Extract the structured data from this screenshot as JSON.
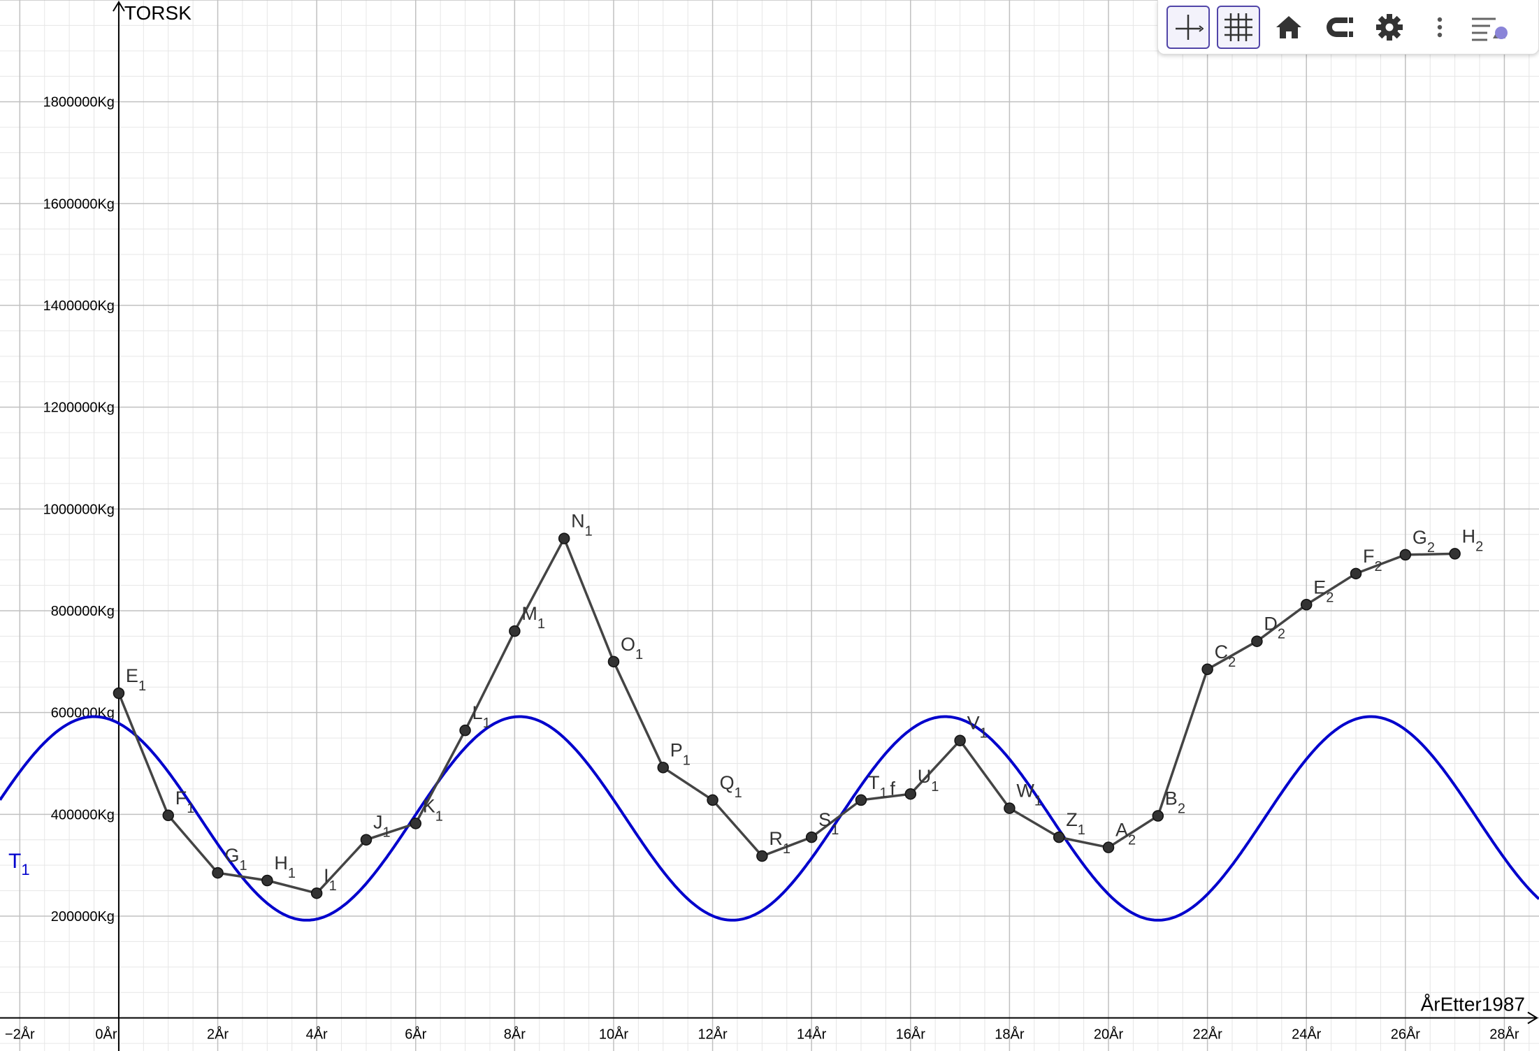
{
  "toolbar": {
    "buttons": [
      {
        "name": "axes-toggle-button",
        "icon": "axes-icon",
        "active": true
      },
      {
        "name": "grid-toggle-button",
        "icon": "grid-icon",
        "active": true
      },
      {
        "name": "home-button",
        "icon": "home-icon",
        "active": false
      },
      {
        "name": "magnet-button",
        "icon": "magnet-icon",
        "active": false
      },
      {
        "name": "settings-button",
        "icon": "gear-icon",
        "active": false
      },
      {
        "name": "more-button",
        "icon": "more-vertical-icon",
        "active": false
      },
      {
        "name": "style-bar-button",
        "icon": "style-bar-icon",
        "active": false
      }
    ]
  },
  "colors": {
    "curve": "#0000cc",
    "polyline": "#444444",
    "points": "#333333",
    "grid_major": "#c0c0c0",
    "grid_minor": "#e6e6e6",
    "toolbar_accent": "#5145a8"
  },
  "chart_data": {
    "type": "line",
    "xlabel": "ÅrEtter1987",
    "ylabel": "TORSK",
    "xlim": [
      -2.4,
      28.7
    ],
    "ylim": [
      -65000,
      2000000
    ],
    "grid": true,
    "x_ticks": [
      -2,
      0,
      2,
      4,
      6,
      8,
      10,
      12,
      14,
      16,
      18,
      20,
      22,
      24,
      26,
      28
    ],
    "x_tick_labels": [
      "−2År",
      "0År",
      "2År",
      "4År",
      "6År",
      "8År",
      "10År",
      "12År",
      "14År",
      "16År",
      "18År",
      "20År",
      "22År",
      "24År",
      "26År",
      "28År"
    ],
    "y_ticks": [
      200000,
      400000,
      600000,
      800000,
      1000000,
      1200000,
      1400000,
      1600000,
      1800000
    ],
    "y_tick_labels": [
      "200000Kg",
      "400000Kg",
      "600000Kg",
      "800000Kg",
      "1000000Kg",
      "1200000Kg",
      "1400000Kg",
      "1600000Kg",
      "1800000Kg"
    ],
    "series": [
      {
        "name": "T₁",
        "kind": "sinusoid",
        "label": "T",
        "label_sub": "1",
        "amplitude": 200000,
        "midline": 392000,
        "period": 8.6,
        "peak_x": -0.5
      },
      {
        "kind": "points",
        "points": [
          {
            "x": 0,
            "y": 638000,
            "label": "E",
            "sub": "1"
          },
          {
            "x": 1,
            "y": 398000,
            "label": "F",
            "sub": "1"
          },
          {
            "x": 2,
            "y": 285000,
            "label": "G",
            "sub": "1"
          },
          {
            "x": 3,
            "y": 270000,
            "label": "H",
            "sub": "1"
          },
          {
            "x": 4,
            "y": 245000,
            "label": "I",
            "sub": "1"
          },
          {
            "x": 5,
            "y": 350000,
            "label": "J",
            "sub": "1"
          },
          {
            "x": 6,
            "y": 382000,
            "label": "K",
            "sub": "1"
          },
          {
            "x": 7,
            "y": 565000,
            "label": "L",
            "sub": "1"
          },
          {
            "x": 8,
            "y": 760000,
            "label": "M",
            "sub": "1"
          },
          {
            "x": 9,
            "y": 942000,
            "label": "N",
            "sub": "1"
          },
          {
            "x": 10,
            "y": 700000,
            "label": "O",
            "sub": "1"
          },
          {
            "x": 11,
            "y": 492000,
            "label": "P",
            "sub": "1"
          },
          {
            "x": 12,
            "y": 428000,
            "label": "Q",
            "sub": "1"
          },
          {
            "x": 13,
            "y": 318000,
            "label": "R",
            "sub": "1"
          },
          {
            "x": 14,
            "y": 355000,
            "label": "S",
            "sub": "1"
          },
          {
            "x": 15,
            "y": 428000,
            "label": "T",
            "sub": "1"
          },
          {
            "x": 16,
            "y": 440000,
            "label": "U",
            "sub": "1"
          },
          {
            "x": 17,
            "y": 545000,
            "label": "V",
            "sub": "1"
          },
          {
            "x": 18,
            "y": 412000,
            "label": "W",
            "sub": "1"
          },
          {
            "x": 19,
            "y": 355000,
            "label": "Z",
            "sub": "1"
          },
          {
            "x": 20,
            "y": 335000,
            "label": "A",
            "sub": "2"
          },
          {
            "x": 21,
            "y": 397000,
            "label": "B",
            "sub": "2"
          },
          {
            "x": 22,
            "y": 685000,
            "label": "C",
            "sub": "2"
          },
          {
            "x": 23,
            "y": 740000,
            "label": "D",
            "sub": "2"
          },
          {
            "x": 24,
            "y": 812000,
            "label": "E",
            "sub": "2"
          },
          {
            "x": 25,
            "y": 873000,
            "label": "F",
            "sub": "2"
          },
          {
            "x": 26,
            "y": 910000,
            "label": "G",
            "sub": "2"
          },
          {
            "x": 27,
            "y": 912000,
            "label": "H",
            "sub": "2"
          }
        ]
      }
    ],
    "annotations": [
      {
        "text": "f",
        "near_x": 15.5,
        "near_y": 430000
      }
    ]
  }
}
